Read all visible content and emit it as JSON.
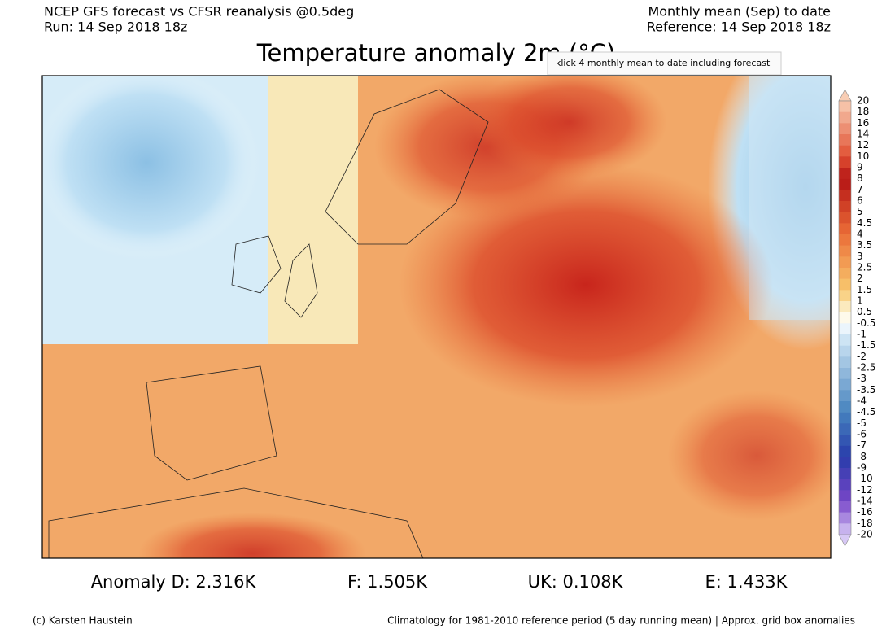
{
  "header": {
    "left": [
      "NCEP GFS forecast vs CFSR reanalysis @0.5deg",
      "Run: 14 Sep 2018 18z"
    ],
    "right": [
      "Monthly mean (Sep) to date",
      "Reference: 14 Sep 2018 18z"
    ]
  },
  "title": "Temperature anomaly 2m (°C)",
  "tooltip": "klick 4 monthly mean to date including forecast",
  "colorbar": {
    "labels": [
      "20",
      "18",
      "16",
      "14",
      "12",
      "10",
      "9",
      "8",
      "7",
      "6",
      "5",
      "4.5",
      "4",
      "3.5",
      "3",
      "2.5",
      "2",
      "1.5",
      "1",
      "0.5",
      "-0.5",
      "-1",
      "-1.5",
      "-2",
      "-2.5",
      "-3",
      "-3.5",
      "-4",
      "-4.5",
      "-5",
      "-6",
      "-7",
      "-8",
      "-9",
      "-10",
      "-12",
      "-14",
      "-16",
      "-18",
      "-20"
    ]
  },
  "stats": [
    "Anomaly D: 2.316K",
    "F: 1.505K",
    "UK: 0.108K",
    "E: 1.433K"
  ],
  "footer": {
    "left": "(c) Karsten Haustein",
    "right": "Climatology for 1981-2010 reference period (5 day running mean) | Approx. grid box anomalies"
  }
}
